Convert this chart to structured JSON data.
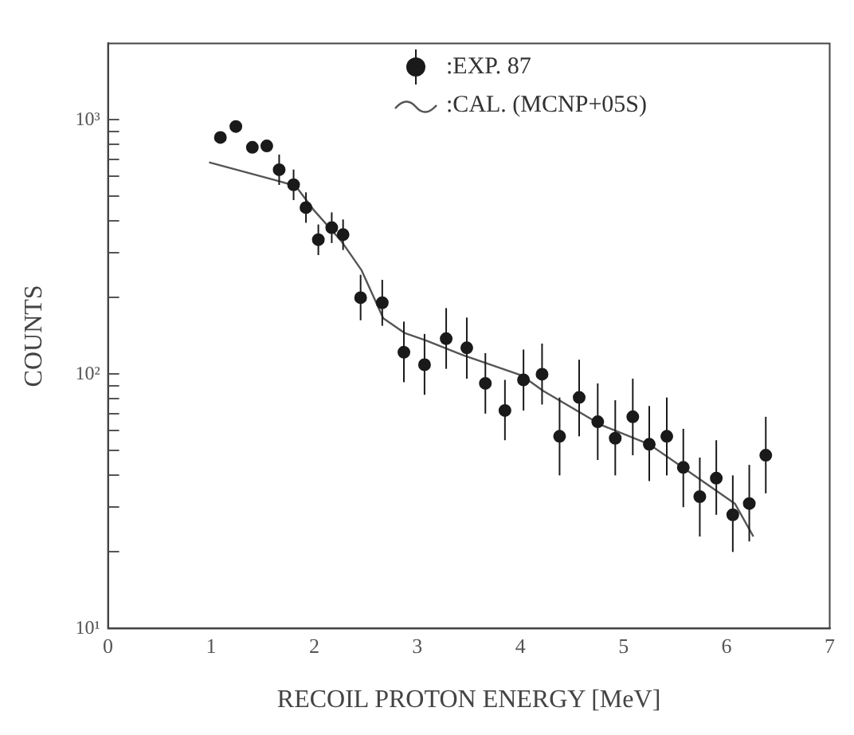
{
  "chart_data": {
    "type": "scatter",
    "xlabel": "RECOIL PROTON ENERGY [MeV]",
    "ylabel": "COUNTS",
    "log": "y",
    "grid": false,
    "legend": "top right",
    "xlim": [
      0,
      7
    ],
    "xticks": [
      0,
      1,
      2,
      3,
      4,
      5,
      6,
      7
    ],
    "ylim": [
      10,
      2000
    ],
    "yticks": [
      {
        "value": 10,
        "label": "10¹"
      },
      {
        "value": 20,
        "label": null
      },
      {
        "value": 30,
        "label": null
      },
      {
        "value": 40,
        "label": null
      },
      {
        "value": 50,
        "label": null
      },
      {
        "value": 60,
        "label": null
      },
      {
        "value": 70,
        "label": null
      },
      {
        "value": 80,
        "label": null
      },
      {
        "value": 90,
        "label": null
      },
      {
        "value": 100,
        "label": "10²"
      },
      {
        "value": 200,
        "label": null
      },
      {
        "value": 300,
        "label": null
      },
      {
        "value": 400,
        "label": null
      },
      {
        "value": 500,
        "label": null
      },
      {
        "value": 600,
        "label": null
      },
      {
        "value": 700,
        "label": null
      },
      {
        "value": 800,
        "label": null
      },
      {
        "value": 900,
        "label": null
      },
      {
        "value": 1000,
        "label": "10³"
      }
    ],
    "series": [
      {
        "name": ":EXP. 87",
        "marker": "circle",
        "color": "#1a1a1a",
        "x": [
          1.09,
          1.24,
          1.4,
          1.54,
          1.66,
          1.8,
          1.92,
          2.04,
          2.17,
          2.28,
          2.45,
          2.66,
          2.87,
          3.07,
          3.28,
          3.48,
          3.66,
          3.85,
          4.03,
          4.21,
          4.38,
          4.57,
          4.75,
          4.92,
          5.09,
          5.25,
          5.42,
          5.58,
          5.74,
          5.9,
          6.06,
          6.22,
          6.38
        ],
        "values": [
          853,
          942,
          780,
          790,
          637,
          556,
          452,
          338,
          377,
          354,
          200,
          191,
          122,
          109,
          138,
          127,
          92,
          72,
          95,
          100,
          57,
          81,
          65,
          56,
          68,
          53,
          57,
          43,
          33,
          39,
          28,
          31,
          48
        ],
        "errors": [
          null,
          null,
          null,
          null,
          [
            555,
            731
          ],
          [
            484,
            638
          ],
          [
            394,
            519
          ],
          [
            294,
            388
          ],
          [
            328,
            433
          ],
          [
            308,
            406
          ],
          [
            163,
            246
          ],
          [
            155,
            235
          ],
          [
            93,
            161
          ],
          [
            83,
            144
          ],
          [
            105,
            182
          ],
          [
            96,
            167
          ],
          [
            70,
            121
          ],
          [
            55,
            95
          ],
          [
            72,
            125
          ],
          [
            76,
            132
          ],
          [
            40,
            81
          ],
          [
            57,
            114
          ],
          [
            46,
            92
          ],
          [
            40,
            79
          ],
          [
            48,
            96
          ],
          [
            38,
            75
          ],
          [
            40,
            81
          ],
          [
            30,
            61
          ],
          [
            23,
            47
          ],
          [
            28,
            55
          ],
          [
            20,
            40
          ],
          [
            22,
            44
          ],
          [
            34,
            68
          ]
        ]
      },
      {
        "name": ":CAL. (MCNP+05S)",
        "type": "line",
        "marker": "none",
        "line_style": "solid",
        "color": "#555555",
        "x": [
          0.98,
          1.64,
          1.82,
          2.0,
          2.26,
          2.46,
          2.67,
          2.88,
          3.08,
          3.44,
          4.01,
          4.22,
          4.79,
          5.25,
          5.61,
          6.08,
          6.26
        ],
        "values": [
          681,
          577,
          550,
          440,
          335,
          256,
          166,
          145,
          136,
          119,
          99,
          86,
          63,
          53,
          42,
          31,
          23
        ]
      }
    ]
  }
}
